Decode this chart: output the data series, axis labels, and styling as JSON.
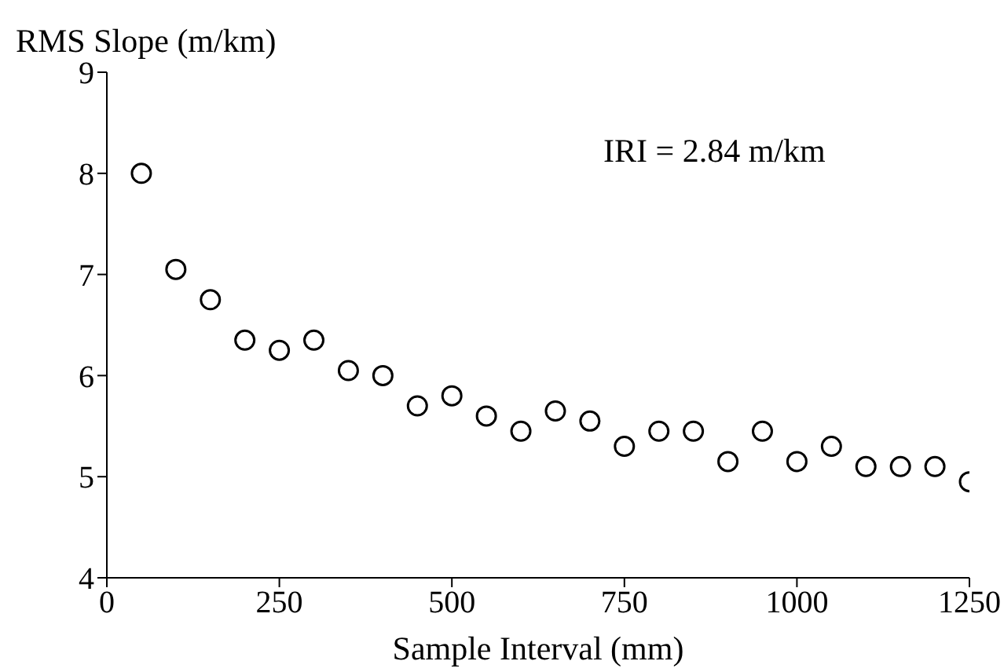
{
  "chart_data": {
    "type": "scatter",
    "xlabel": "Sample Interval (mm)",
    "ylabel": "RMS Slope (m/km)",
    "annotations": [
      "IRI = 2.84 m/km"
    ],
    "x": [
      50,
      100,
      150,
      200,
      250,
      300,
      350,
      400,
      450,
      500,
      550,
      600,
      650,
      700,
      750,
      800,
      850,
      900,
      950,
      1000,
      1050,
      1100,
      1150,
      1200,
      1250
    ],
    "values": [
      8.0,
      7.05,
      6.75,
      6.35,
      6.25,
      6.35,
      6.05,
      6.0,
      5.7,
      5.8,
      5.6,
      5.45,
      5.65,
      5.55,
      5.3,
      5.45,
      5.45,
      5.15,
      5.45,
      5.15,
      5.3,
      5.1,
      5.1,
      5.1,
      4.95
    ],
    "color": "#000000",
    "marker": "circle",
    "grid": false,
    "legend": false,
    "xlim": [
      0,
      1250
    ],
    "xticks": [
      0,
      250,
      500,
      750,
      1000,
      1250
    ],
    "ylim": [
      4,
      9
    ],
    "yticks": [
      4,
      5,
      6,
      7,
      8,
      9
    ]
  }
}
